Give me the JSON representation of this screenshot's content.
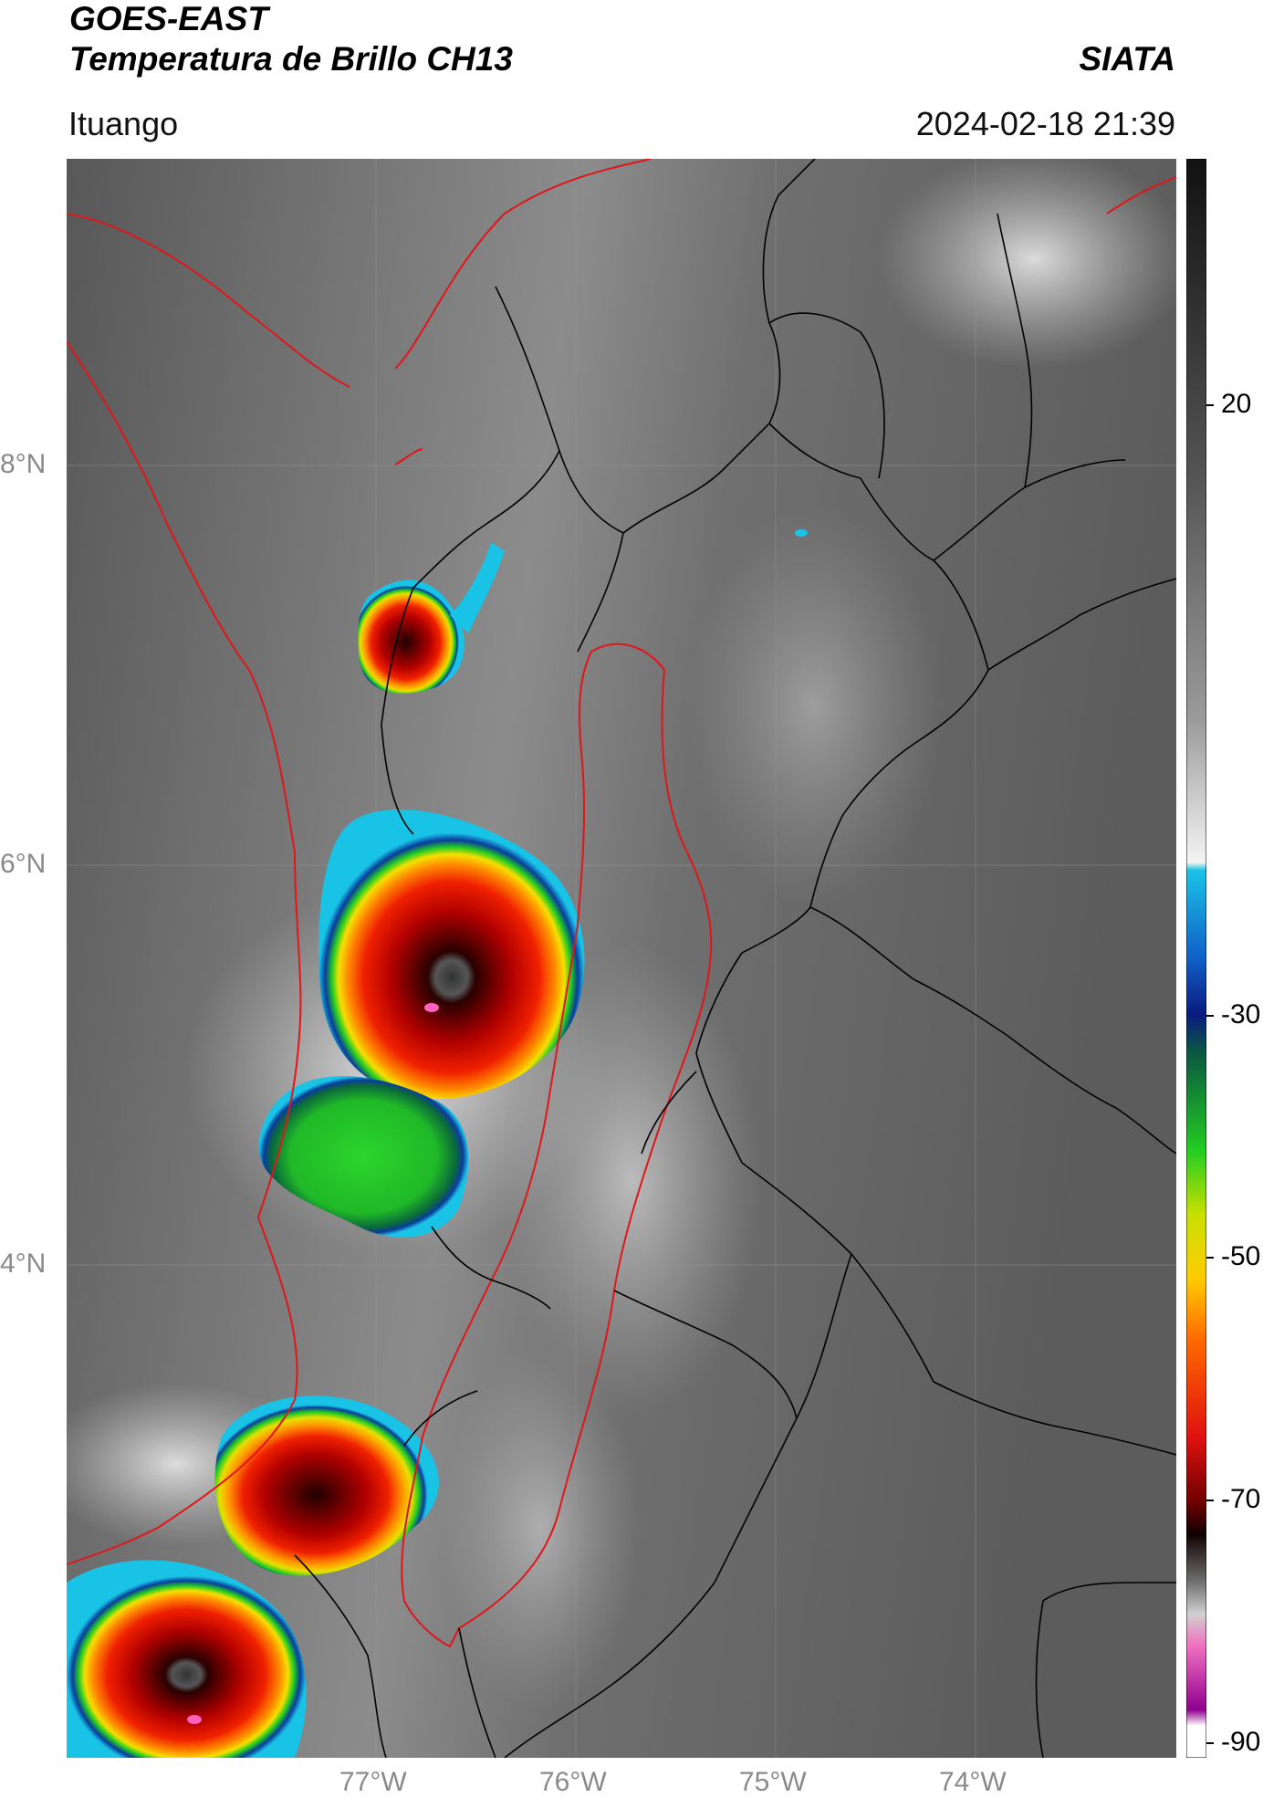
{
  "header": {
    "satellite": "GOES-EAST",
    "product": "Temperatura de Brillo CH13",
    "agency": "SIATA",
    "region": "Ituango",
    "datetime": "2024-02-18 21:39"
  },
  "map": {
    "lat_ticks": [
      "8°N",
      "6°N",
      "4°N"
    ],
    "lon_ticks": [
      "77°W",
      "76°W",
      "75°W",
      "74°W"
    ],
    "extent": {
      "lon_min": -78.55,
      "lon_max": -73.0,
      "lat_min": 1.55,
      "lat_max": 9.55
    }
  },
  "colorbar": {
    "ticks": [
      "20",
      "-30",
      "-50",
      "-70",
      "-90"
    ],
    "range": [
      -90,
      50
    ]
  },
  "colors": {
    "boundary_red": "#e0161b",
    "boundary_black": "#000000"
  }
}
